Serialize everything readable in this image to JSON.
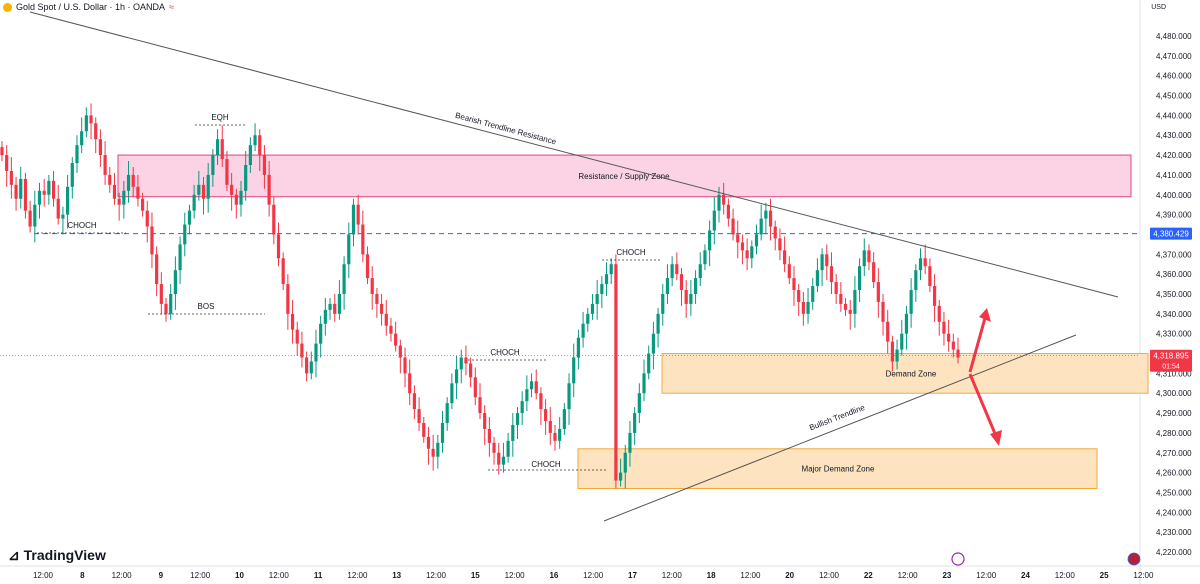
{
  "header": {
    "title": "Gold Spot / U.S. Dollar · 1h · OANDA",
    "currency": "USD"
  },
  "brand": {
    "name": "TradingView"
  },
  "colors": {
    "up": "#089981",
    "down": "#f23645",
    "supply_fill": "#fbd3e4",
    "supply_border": "#e0447f",
    "demand_fill": "#fde3bf",
    "demand_border": "#f4a93a",
    "trend": "#555555",
    "price_line": "#2962ff",
    "current_price": "#f23645",
    "arrow": "#f23645"
  },
  "chart_data": {
    "type": "candlestick",
    "symbol": "Gold Spot / U.S. Dollar",
    "interval": "1h",
    "source": "OANDA",
    "y_axis": {
      "min": 4220,
      "max": 4480,
      "ticks": [
        4480,
        4470,
        4460,
        4450,
        4440,
        4430,
        4420,
        4410,
        4400,
        4390,
        4380,
        4370,
        4360,
        4350,
        4340,
        4330,
        4320,
        4310,
        4300,
        4290,
        4280,
        4270,
        4260,
        4250,
        4240,
        4230,
        4220
      ],
      "tick_labels": [
        "4,480.000",
        "4,470.000",
        "4,460.000",
        "4,450.000",
        "4,440.000",
        "4,430.000",
        "4,420.000",
        "4,410.000",
        "4,400.000",
        "4,390.000",
        "4,380.000",
        "4,370.000",
        "4,360.000",
        "4,350.000",
        "4,340.000",
        "4,330.000",
        "4,320.000",
        "4,310.000",
        "4,300.000",
        "4,290.000",
        "4,280.000",
        "4,270.000",
        "4,260.000",
        "4,250.000",
        "4,240.000",
        "4,230.000",
        "4,220.000"
      ]
    },
    "x_axis": {
      "tick_labels": [
        "12:00",
        "8",
        "12:00",
        "9",
        "12:00",
        "10",
        "12:00",
        "11",
        "12:00",
        "13",
        "12:00",
        "15",
        "12:00",
        "16",
        "12:00",
        "17",
        "12:00",
        "18",
        "12:00",
        "20",
        "12:00",
        "22",
        "12:00",
        "23",
        "12:00",
        "24",
        "12:00",
        "25",
        "12:00"
      ]
    },
    "price_marks": {
      "horizontal_level": {
        "value": 4380.429,
        "label": "4,380.429"
      },
      "current": {
        "value": 4318.895,
        "label": "4,318.895",
        "countdown": "01:54"
      }
    },
    "zones": [
      {
        "name": "Resistance / Supply Zone",
        "top": 4420,
        "bottom": 4399,
        "kind": "supply"
      },
      {
        "name": "Demand Zone",
        "top": 4320,
        "bottom": 4300,
        "kind": "demand"
      },
      {
        "name": "Major Demand Zone",
        "top": 4272,
        "bottom": 4252,
        "kind": "demand"
      }
    ],
    "trendlines": [
      {
        "name": "Bearish Trendline Resistance"
      },
      {
        "name": "Bullish Trendline"
      }
    ],
    "structure_labels": [
      "EQH",
      "CHOCH",
      "BOS",
      "CHOCH",
      "CHOCH",
      "CHOCH"
    ],
    "candles_close": [
      4420,
      4412,
      4405,
      4398,
      4408,
      4392,
      4384,
      4395,
      4402,
      4400,
      4407,
      4398,
      4388,
      4390,
      4404,
      4416,
      4425,
      4432,
      4440,
      4436,
      4428,
      4420,
      4410,
      4405,
      4398,
      4395,
      4402,
      4410,
      4404,
      4398,
      4392,
      4384,
      4370,
      4355,
      4345,
      4340,
      4350,
      4362,
      4375,
      4385,
      4392,
      4400,
      4405,
      4398,
      4410,
      4420,
      4428,
      4418,
      4405,
      4400,
      4395,
      4402,
      4415,
      4425,
      4430,
      4420,
      4410,
      4395,
      4380,
      4368,
      4355,
      4340,
      4332,
      4325,
      4318,
      4310,
      4316,
      4325,
      4335,
      4342,
      4345,
      4340,
      4350,
      4365,
      4380,
      4395,
      4385,
      4370,
      4358,
      4350,
      4345,
      4340,
      4334,
      4330,
      4324,
      4318,
      4310,
      4300,
      4292,
      4285,
      4278,
      4272,
      4268,
      4275,
      4285,
      4295,
      4305,
      4312,
      4318,
      4315,
      4308,
      4298,
      4290,
      4282,
      4275,
      4270,
      4264,
      4268,
      4276,
      4284,
      4290,
      4296,
      4302,
      4306,
      4300,
      4292,
      4286,
      4280,
      4276,
      4282,
      4292,
      4305,
      4318,
      4328,
      4335,
      4340,
      4345,
      4350,
      4355,
      4360,
      4365,
      4256,
      4260,
      4270,
      4280,
      4290,
      4300,
      4310,
      4320,
      4330,
      4340,
      4350,
      4358,
      4365,
      4360,
      4352,
      4345,
      4350,
      4358,
      4365,
      4372,
      4382,
      4392,
      4400,
      4395,
      4388,
      4380,
      4376,
      4372,
      4368,
      4374,
      4380,
      4388,
      4392,
      4384,
      4378,
      4372,
      4365,
      4358,
      4352,
      4346,
      4340,
      4346,
      4354,
      4362,
      4370,
      4364,
      4356,
      4350,
      4345,
      4342,
      4340,
      4352,
      4364,
      4372,
      4366,
      4356,
      4346,
      4336,
      4326,
      4316,
      4322,
      4330,
      4340,
      4352,
      4362,
      4368,
      4364,
      4354,
      4344,
      4336,
      4330,
      4326,
      4322,
      4318
    ]
  }
}
